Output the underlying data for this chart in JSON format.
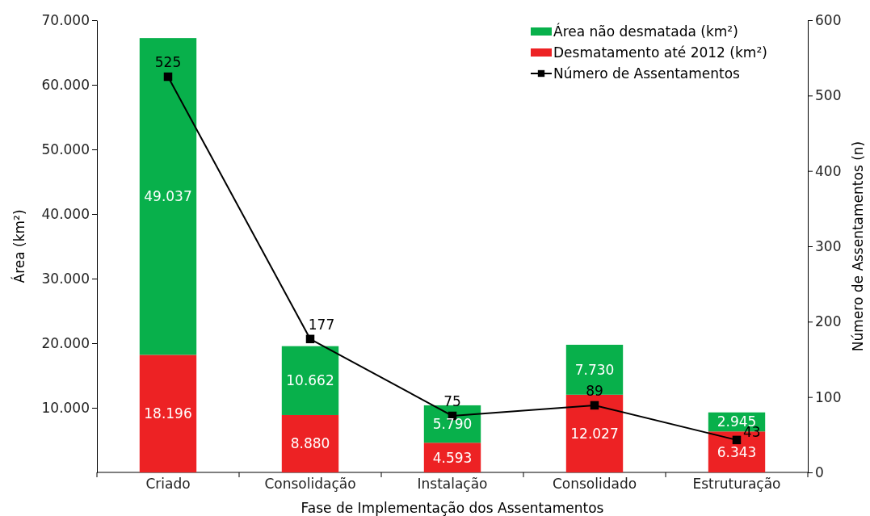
{
  "chart_data": {
    "type": "bar",
    "xlabel": "Fase de Implementação dos Assentamentos",
    "ylabel": "Área (km²)",
    "y2label": "Número de Assentamentos (n)",
    "categories": [
      "Criado",
      "Consolidação",
      "Instalação",
      "Consolidado",
      "Estruturação"
    ],
    "stacked": true,
    "legend": "top right",
    "marker": "square",
    "line_style": "solid",
    "ylim": [
      0,
      70000
    ],
    "yticks": [
      {
        "value": 10000,
        "label": "10.000"
      },
      {
        "value": 20000,
        "label": "20.000"
      },
      {
        "value": 30000,
        "label": "30.000"
      },
      {
        "value": 40000,
        "label": "40.000"
      },
      {
        "value": 50000,
        "label": "50.000"
      },
      {
        "value": 60000,
        "label": "60.000"
      },
      {
        "value": 70000,
        "label": "70.000"
      }
    ],
    "y2lim": [
      0,
      600
    ],
    "y2ticks": [
      0,
      100,
      200,
      300,
      400,
      500,
      600
    ],
    "series": [
      {
        "name": "Desmatamento até 2012 (km²)",
        "color": "#ed2224",
        "values": [
          18196,
          8880,
          4593,
          12027,
          6343
        ],
        "value_labels": [
          "18.196",
          "8.880",
          "4.593",
          "12.027",
          "6.343"
        ]
      },
      {
        "name": "Área não desmatada (km²)",
        "color": "#08b04b",
        "values": [
          49037,
          10662,
          5790,
          7730,
          2945
        ],
        "value_labels": [
          "49.037",
          "10.662",
          "5.790",
          "7.730",
          "2.945"
        ]
      },
      {
        "name": "Número de Assentamentos",
        "type": "line",
        "axis": "y2",
        "color": "#000000",
        "values": [
          525,
          177,
          75,
          89,
          43
        ],
        "value_labels": [
          "525",
          "177",
          "75",
          "89",
          "43"
        ]
      }
    ]
  }
}
